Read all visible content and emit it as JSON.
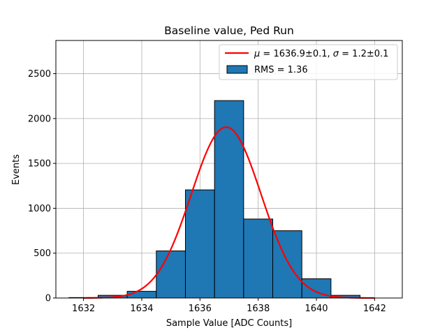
{
  "chart_data": {
    "type": "bar",
    "title": "Baseline value, Ped Run",
    "xlabel": "Sample Value [ADC Counts]",
    "ylabel": "Events",
    "xlim": [
      1631.05,
      1642.95
    ],
    "ylim": [
      0,
      2870
    ],
    "grid": true,
    "legend_position": "top-right",
    "x_ticks": [
      1632,
      1634,
      1636,
      1638,
      1640,
      1642
    ],
    "y_ticks": [
      0,
      500,
      1000,
      1500,
      2000,
      2500
    ],
    "histogram": {
      "name": "RMS = 1.36",
      "bin_edges": [
        1631.5,
        1632.5,
        1633.5,
        1634.5,
        1635.5,
        1636.5,
        1637.5,
        1638.5,
        1639.5,
        1640.5,
        1641.5
      ],
      "counts": [
        5,
        30,
        75,
        525,
        1205,
        2200,
        880,
        750,
        215,
        30
      ],
      "color": "#1f77b4",
      "edgecolor": "#000000"
    },
    "fit": {
      "name": "$\\mu = 1636.9\\pm0.1, \\sigma = 1.2\\pm0.1$",
      "legend_parts": [
        "μ",
        " = 1636.9±0.1, ",
        "σ",
        " = 1.2±0.1"
      ],
      "function": "gaussian",
      "amplitude": 1905,
      "mu": 1636.9,
      "sigma": 1.2,
      "x_range": [
        1632,
        1642
      ],
      "color": "#ff0000"
    }
  }
}
